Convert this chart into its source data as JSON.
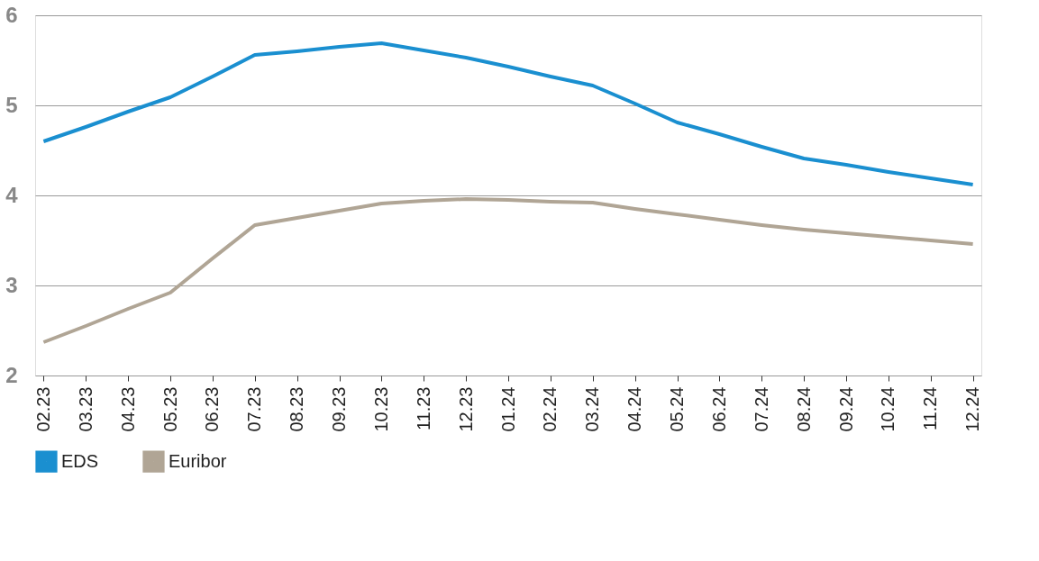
{
  "chart_data": {
    "type": "line",
    "categories": [
      "02.23",
      "03.23",
      "04.23",
      "05.23",
      "06.23",
      "07.23",
      "08.23",
      "09.23",
      "10.23",
      "11.23",
      "12.23",
      "01.24",
      "02.24",
      "03.24",
      "04.24",
      "05.24",
      "06.24",
      "07.24",
      "08.24",
      "09.24",
      "10.24",
      "11.24",
      "12.24"
    ],
    "series": [
      {
        "name": "EDS",
        "color": "#1a8fd0",
        "values": [
          4.6,
          4.76,
          4.93,
          5.09,
          5.32,
          5.56,
          5.6,
          5.65,
          5.69,
          5.61,
          5.53,
          5.43,
          5.32,
          5.22,
          5.02,
          4.81,
          4.68,
          4.54,
          4.41,
          4.34,
          4.26,
          4.19,
          4.12
        ]
      },
      {
        "name": "Euribor",
        "color": "#b0a595",
        "values": [
          2.37,
          2.55,
          2.74,
          2.92,
          3.3,
          3.67,
          3.75,
          3.83,
          3.91,
          3.94,
          3.96,
          3.95,
          3.93,
          3.92,
          3.85,
          3.79,
          3.73,
          3.67,
          3.62,
          3.58,
          3.54,
          3.5,
          3.46
        ]
      }
    ],
    "ylim": [
      2,
      6
    ],
    "yticks": [
      2,
      3,
      4,
      5,
      6
    ],
    "grid": "y",
    "legend": "bottom left",
    "marker": "none",
    "line_style": "solid"
  }
}
